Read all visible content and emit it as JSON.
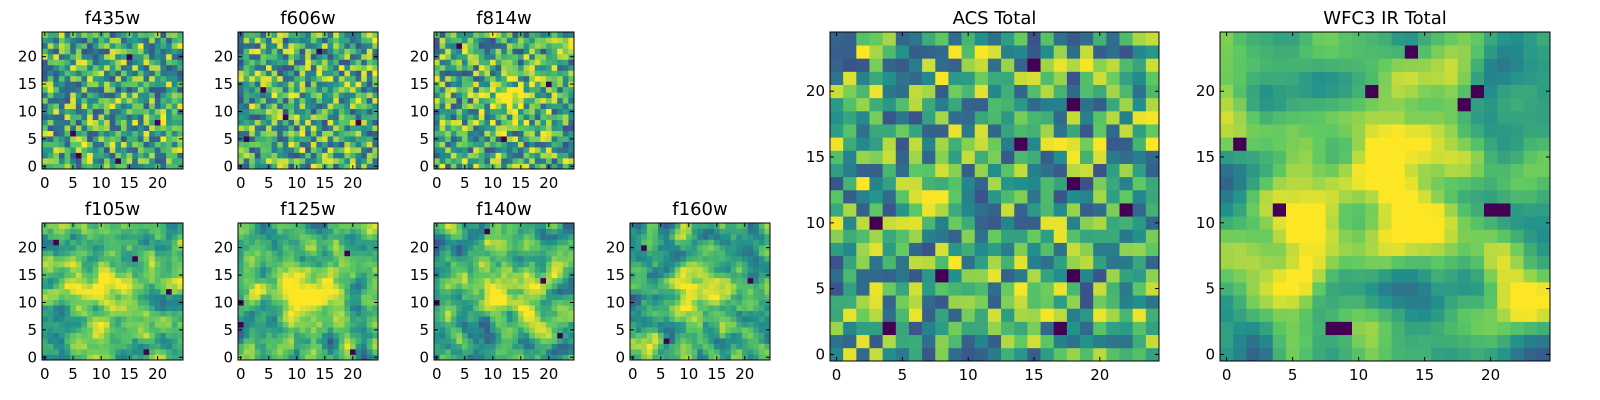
{
  "chart_data": {
    "type": "heatmap",
    "colormap": [
      "#440154",
      "#3b528b",
      "#21908d",
      "#5dc863",
      "#fde725"
    ],
    "panels": [
      {
        "title": "f435w",
        "grid_size": 25,
        "xlim": [
          -0.5,
          24.5
        ],
        "ylim": [
          -0.5,
          24.5
        ],
        "xticks": [
          0,
          5,
          10,
          15,
          20
        ],
        "yticks": [
          0,
          5,
          10,
          15,
          20
        ],
        "seed": 11,
        "smooth": 0,
        "blobs": [],
        "dark_cells": [
          [
            6,
            2
          ],
          [
            15,
            20
          ],
          [
            20,
            8
          ],
          [
            5,
            6
          ],
          [
            13,
            1
          ]
        ]
      },
      {
        "title": "f606w",
        "grid_size": 25,
        "xlim": [
          -0.5,
          24.5
        ],
        "ylim": [
          -0.5,
          24.5
        ],
        "xticks": [
          0,
          5,
          10,
          15,
          20
        ],
        "yticks": [
          0,
          5,
          10,
          15,
          20
        ],
        "seed": 23,
        "smooth": 0,
        "blobs": [],
        "dark_cells": [
          [
            1,
            5
          ],
          [
            8,
            9
          ],
          [
            21,
            8
          ],
          [
            14,
            21
          ],
          [
            4,
            14
          ]
        ]
      },
      {
        "title": "f814w",
        "grid_size": 25,
        "xlim": [
          -0.5,
          24.5
        ],
        "ylim": [
          -0.5,
          24.5
        ],
        "xticks": [
          0,
          5,
          10,
          15,
          20
        ],
        "yticks": [
          0,
          5,
          10,
          15,
          20
        ],
        "seed": 37,
        "smooth": 0,
        "blobs": [
          [
            13,
            12,
            2.5,
            0.35
          ]
        ],
        "dark_cells": [
          [
            12,
            5
          ],
          [
            20,
            15
          ],
          [
            4,
            22
          ]
        ]
      },
      {
        "title": "f105w",
        "grid_size": 25,
        "xlim": [
          -0.5,
          24.5
        ],
        "ylim": [
          -0.5,
          24.5
        ],
        "xticks": [
          0,
          5,
          10,
          15,
          20
        ],
        "yticks": [
          0,
          5,
          10,
          15,
          20
        ],
        "seed": 51,
        "smooth": 1,
        "blobs": [
          [
            11,
            11,
            3.5,
            0.4
          ]
        ],
        "dark_cells": [
          [
            18,
            1
          ],
          [
            22,
            12
          ],
          [
            2,
            21
          ],
          [
            16,
            18
          ]
        ]
      },
      {
        "title": "f125w",
        "grid_size": 25,
        "xlim": [
          -0.5,
          24.5
        ],
        "ylim": [
          -0.5,
          24.5
        ],
        "xticks": [
          0,
          5,
          10,
          15,
          20
        ],
        "yticks": [
          0,
          5,
          10,
          15,
          20
        ],
        "seed": 67,
        "smooth": 1,
        "blobs": [
          [
            12,
            12,
            3.5,
            0.4
          ]
        ],
        "dark_cells": [
          [
            0,
            10
          ],
          [
            0,
            6
          ],
          [
            19,
            19
          ],
          [
            20,
            1
          ]
        ]
      },
      {
        "title": "f140w",
        "grid_size": 25,
        "xlim": [
          -0.5,
          24.5
        ],
        "ylim": [
          -0.5,
          24.5
        ],
        "xticks": [
          0,
          5,
          10,
          15,
          20
        ],
        "yticks": [
          0,
          5,
          10,
          15,
          20
        ],
        "seed": 79,
        "smooth": 1,
        "blobs": [
          [
            12,
            12,
            3.5,
            0.4
          ]
        ],
        "dark_cells": [
          [
            9,
            23
          ],
          [
            0,
            10
          ],
          [
            19,
            14
          ],
          [
            22,
            4
          ]
        ]
      },
      {
        "title": "f160w",
        "grid_size": 25,
        "xlim": [
          -0.5,
          24.5
        ],
        "ylim": [
          -0.5,
          24.5
        ],
        "xticks": [
          0,
          5,
          10,
          15,
          20
        ],
        "yticks": [
          0,
          5,
          10,
          15,
          20
        ],
        "seed": 91,
        "smooth": 1,
        "blobs": [
          [
            12,
            12,
            3.0,
            0.35
          ]
        ],
        "dark_cells": [
          [
            2,
            20
          ],
          [
            21,
            14
          ],
          [
            6,
            3
          ]
        ]
      },
      {
        "title": "ACS Total",
        "grid_size": 25,
        "xlim": [
          -0.5,
          24.5
        ],
        "ylim": [
          -0.5,
          24.5
        ],
        "xticks": [
          0,
          5,
          10,
          15,
          20
        ],
        "yticks": [
          0,
          5,
          10,
          15,
          20
        ],
        "seed": 103,
        "smooth": 0,
        "blobs": [],
        "dark_cells": [
          [
            15,
            22
          ],
          [
            18,
            19
          ],
          [
            14,
            16
          ],
          [
            18,
            13
          ],
          [
            3,
            10
          ],
          [
            22,
            11
          ],
          [
            8,
            6
          ],
          [
            18,
            6
          ],
          [
            4,
            2
          ],
          [
            17,
            2
          ]
        ]
      },
      {
        "title": "WFC3 IR Total",
        "grid_size": 25,
        "xlim": [
          -0.5,
          24.5
        ],
        "ylim": [
          -0.5,
          24.5
        ],
        "xticks": [
          0,
          5,
          10,
          15,
          20
        ],
        "yticks": [
          0,
          5,
          10,
          15,
          20
        ],
        "seed": 131,
        "smooth": 2,
        "blobs": [
          [
            12,
            12,
            4.0,
            0.45
          ],
          [
            5,
            9,
            2.0,
            0.3
          ],
          [
            23,
            5,
            2.5,
            0.3
          ]
        ],
        "dark_cells": [
          [
            11,
            20
          ],
          [
            18,
            19
          ],
          [
            19,
            20
          ],
          [
            4,
            11
          ],
          [
            20,
            11
          ],
          [
            21,
            11
          ],
          [
            8,
            2
          ],
          [
            9,
            2
          ],
          [
            14,
            23
          ],
          [
            1,
            16
          ]
        ]
      }
    ]
  }
}
